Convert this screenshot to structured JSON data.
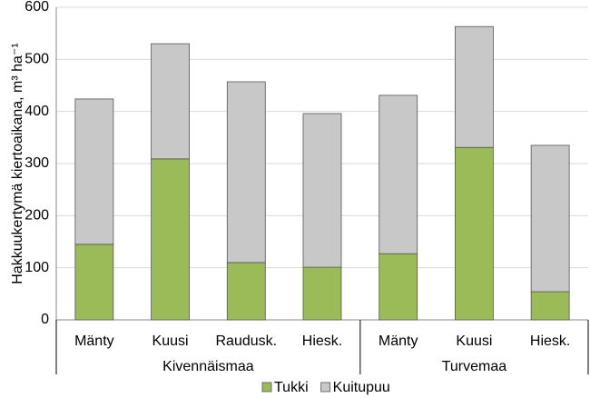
{
  "chart_data": {
    "type": "stacked_bar",
    "y_label": "Hakkuukertymä kiertoaikana, m³ ha⁻¹",
    "groups": [
      {
        "name": "Kivennäismaa",
        "categories": [
          "Mänty",
          "Kuusi",
          "Raudusk.",
          "Hiesk."
        ]
      },
      {
        "name": "Turvemaa",
        "categories": [
          "Mänty",
          "Kuusi",
          "Hiesk."
        ]
      }
    ],
    "series": [
      {
        "name": "Tukki",
        "color": "#9bbb59",
        "values": [
          145,
          309,
          110,
          101,
          127,
          331,
          54
        ]
      },
      {
        "name": "Kuitupuu",
        "color": "#c8c8c8",
        "values": [
          279,
          221,
          347,
          295,
          304,
          232,
          281
        ]
      }
    ],
    "ylim": [
      0,
      600
    ],
    "yticks": [
      0,
      100,
      200,
      300,
      400,
      500,
      600
    ],
    "grid": true
  }
}
